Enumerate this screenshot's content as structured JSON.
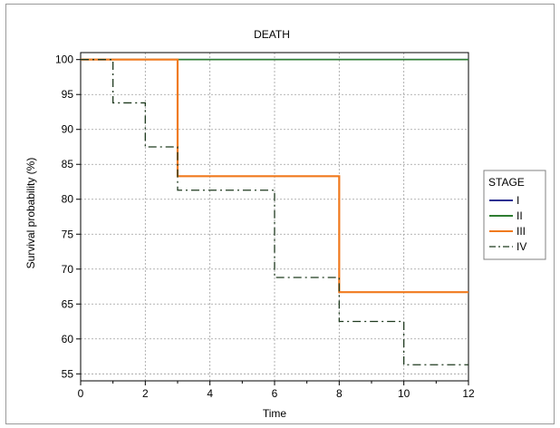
{
  "chart_data": {
    "type": "line",
    "title": "DEATH",
    "xlabel": "Time",
    "ylabel": "Survival probability (%)",
    "xlim": [
      0,
      12
    ],
    "ylim": [
      54,
      101
    ],
    "x_ticks": [
      0,
      2,
      4,
      6,
      8,
      10,
      12
    ],
    "y_ticks": [
      55,
      60,
      65,
      70,
      75,
      80,
      85,
      90,
      95,
      100
    ],
    "grid": true,
    "step": true,
    "legend": {
      "title": "STAGE",
      "position": "right"
    },
    "series": [
      {
        "name": "I",
        "color": "#2e3192",
        "dash": "solid",
        "x": [
          0,
          12
        ],
        "y": [
          100,
          100
        ]
      },
      {
        "name": "II",
        "color": "#2e7d32",
        "dash": "solid",
        "x": [
          0,
          12
        ],
        "y": [
          100,
          100
        ]
      },
      {
        "name": "III",
        "color": "#f07a1e",
        "dash": "solid",
        "x": [
          0,
          3,
          8,
          12
        ],
        "y": [
          100,
          83.3,
          66.7,
          66.7
        ]
      },
      {
        "name": "IV",
        "color": "#1f3a1f",
        "dash": "dashdot",
        "x": [
          0,
          1,
          2,
          3,
          6,
          8,
          10,
          12
        ],
        "y": [
          100,
          93.8,
          87.5,
          81.3,
          68.8,
          62.5,
          56.3,
          56.3
        ]
      }
    ]
  }
}
